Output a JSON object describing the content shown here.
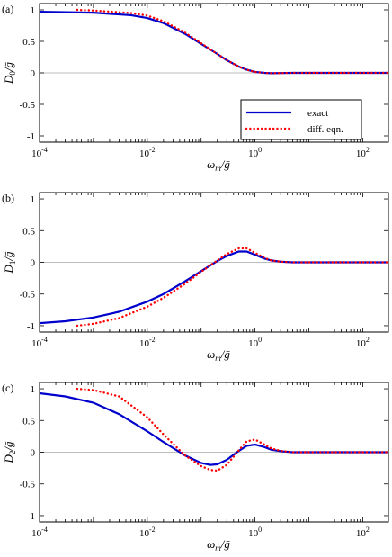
{
  "chart_data": [
    {
      "type": "line",
      "panel_label": "(a)",
      "xlabel": "ωm/ḡ",
      "ylabel": "D0/ḡ",
      "xscale": "log",
      "xlim": [
        0.0001,
        300
      ],
      "ylim": [
        -1.1,
        1.1
      ],
      "xticks": [
        "10^-4",
        "10^-2",
        "10^0",
        "10^2"
      ],
      "yticks": [
        "1",
        "0.5",
        "0",
        "-0.5",
        "-1"
      ],
      "zero_line": true,
      "grid": false,
      "legend": {
        "placement": "bottom-right",
        "entries": [
          "exact",
          "diff. eqn."
        ]
      },
      "series": [
        {
          "name": "exact",
          "style": "solid",
          "color": "#0000cc",
          "x": [
            0.0001,
            0.001,
            0.005,
            0.01,
            0.02,
            0.05,
            0.1,
            0.2,
            0.3,
            0.5,
            0.7,
            1,
            1.5,
            2,
            3,
            5,
            10,
            300
          ],
          "y": [
            0.97,
            0.955,
            0.915,
            0.87,
            0.79,
            0.62,
            0.46,
            0.3,
            0.2,
            0.1,
            0.05,
            0.015,
            0.0,
            -0.005,
            -0.003,
            0,
            0,
            0
          ]
        },
        {
          "name": "diff. eqn.",
          "style": "dotted",
          "color": "#ff0000",
          "x": [
            0.0005,
            0.001,
            0.005,
            0.01,
            0.02,
            0.05,
            0.1,
            0.2,
            0.3,
            0.5,
            0.7,
            1,
            1.5,
            2,
            3,
            5,
            10,
            300
          ],
          "y": [
            1.0,
            0.99,
            0.95,
            0.91,
            0.82,
            0.64,
            0.47,
            0.3,
            0.2,
            0.1,
            0.05,
            0.015,
            0.0,
            -0.005,
            -0.003,
            0,
            0,
            0
          ]
        }
      ]
    },
    {
      "type": "line",
      "panel_label": "(b)",
      "xlabel": "ωm/ḡ",
      "ylabel": "D1/ḡ",
      "xscale": "log",
      "xlim": [
        0.0001,
        300
      ],
      "ylim": [
        -1.1,
        1.1
      ],
      "xticks": [
        "10^-4",
        "10^-2",
        "10^0",
        "10^2"
      ],
      "yticks": [
        "1",
        "0.5",
        "0",
        "-0.5",
        "-1"
      ],
      "zero_line": true,
      "grid": false,
      "series": [
        {
          "name": "exact",
          "style": "solid",
          "color": "#0000cc",
          "x": [
            0.0001,
            0.0003,
            0.001,
            0.003,
            0.01,
            0.02,
            0.05,
            0.1,
            0.2,
            0.3,
            0.5,
            0.7,
            1,
            1.5,
            2,
            3,
            5,
            10,
            300
          ],
          "y": [
            -0.96,
            -0.93,
            -0.87,
            -0.78,
            -0.62,
            -0.5,
            -0.3,
            -0.14,
            0.02,
            0.1,
            0.17,
            0.17,
            0.12,
            0.06,
            0.03,
            0.01,
            0,
            0,
            0
          ]
        },
        {
          "name": "diff. eqn.",
          "style": "dotted",
          "color": "#ff0000",
          "x": [
            0.0005,
            0.001,
            0.003,
            0.01,
            0.02,
            0.05,
            0.1,
            0.2,
            0.3,
            0.5,
            0.7,
            1,
            1.5,
            2,
            3,
            5,
            10,
            300
          ],
          "y": [
            -1.0,
            -0.97,
            -0.88,
            -0.7,
            -0.56,
            -0.34,
            -0.15,
            0.03,
            0.13,
            0.22,
            0.22,
            0.15,
            0.07,
            0.03,
            0.01,
            0,
            0,
            0
          ]
        }
      ]
    },
    {
      "type": "line",
      "panel_label": "(c)",
      "xlabel": "ωm/ḡ",
      "ylabel": "D2/ḡ",
      "xscale": "log",
      "xlim": [
        0.0001,
        300
      ],
      "ylim": [
        -1.1,
        1.1
      ],
      "xticks": [
        "10^-4",
        "10^-2",
        "10^0",
        "10^2"
      ],
      "yticks": [
        "1",
        "0.5",
        "0",
        "-0.5",
        "-1"
      ],
      "zero_line": true,
      "grid": false,
      "series": [
        {
          "name": "exact",
          "style": "solid",
          "color": "#0000cc",
          "x": [
            0.0001,
            0.0003,
            0.001,
            0.003,
            0.01,
            0.02,
            0.05,
            0.1,
            0.15,
            0.2,
            0.3,
            0.5,
            0.7,
            1,
            1.5,
            2,
            3,
            5,
            10,
            300
          ],
          "y": [
            0.93,
            0.88,
            0.78,
            0.6,
            0.33,
            0.16,
            -0.05,
            -0.17,
            -0.2,
            -0.19,
            -0.12,
            0.02,
            0.1,
            0.12,
            0.08,
            0.04,
            0.015,
            0,
            0,
            0
          ]
        },
        {
          "name": "diff. eqn.",
          "style": "dotted",
          "color": "#ff0000",
          "x": [
            0.0005,
            0.001,
            0.003,
            0.01,
            0.02,
            0.05,
            0.1,
            0.15,
            0.2,
            0.3,
            0.5,
            0.7,
            1,
            1.5,
            2,
            3,
            5,
            10,
            300
          ],
          "y": [
            1.0,
            0.98,
            0.88,
            0.55,
            0.28,
            -0.05,
            -0.22,
            -0.28,
            -0.29,
            -0.2,
            0.03,
            0.17,
            0.2,
            0.12,
            0.06,
            0.02,
            0,
            0,
            0
          ]
        }
      ]
    }
  ]
}
